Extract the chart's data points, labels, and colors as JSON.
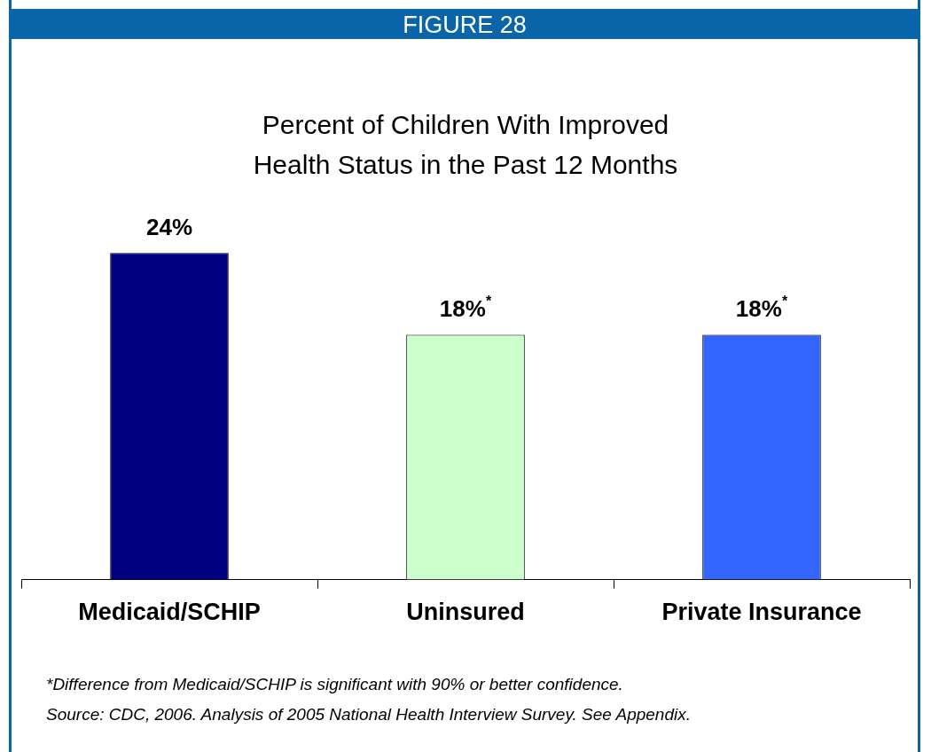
{
  "chart_data": {
    "type": "bar",
    "subtitle": "FIGURE 28",
    "title": "Percent of Children With Improved Health Status in the Past 12 Months",
    "categories": [
      "Medicaid/SCHIP",
      "Uninsured",
      "Private Insurance"
    ],
    "values": [
      24,
      18,
      18
    ],
    "colors": [
      "#000080",
      "#ccffcc",
      "#3366ff"
    ],
    "value_labels": [
      "24%",
      "18%$^{*}$",
      "18%$^{*}$"
    ],
    "annotations": [
      "*Difference from Medicaid/SCHIP is significant with 90% or better confidence.",
      "Source: CDC, 2006.  Analysis of 2005 National Health Interview Survey. See Appendix."
    ]
  }
}
